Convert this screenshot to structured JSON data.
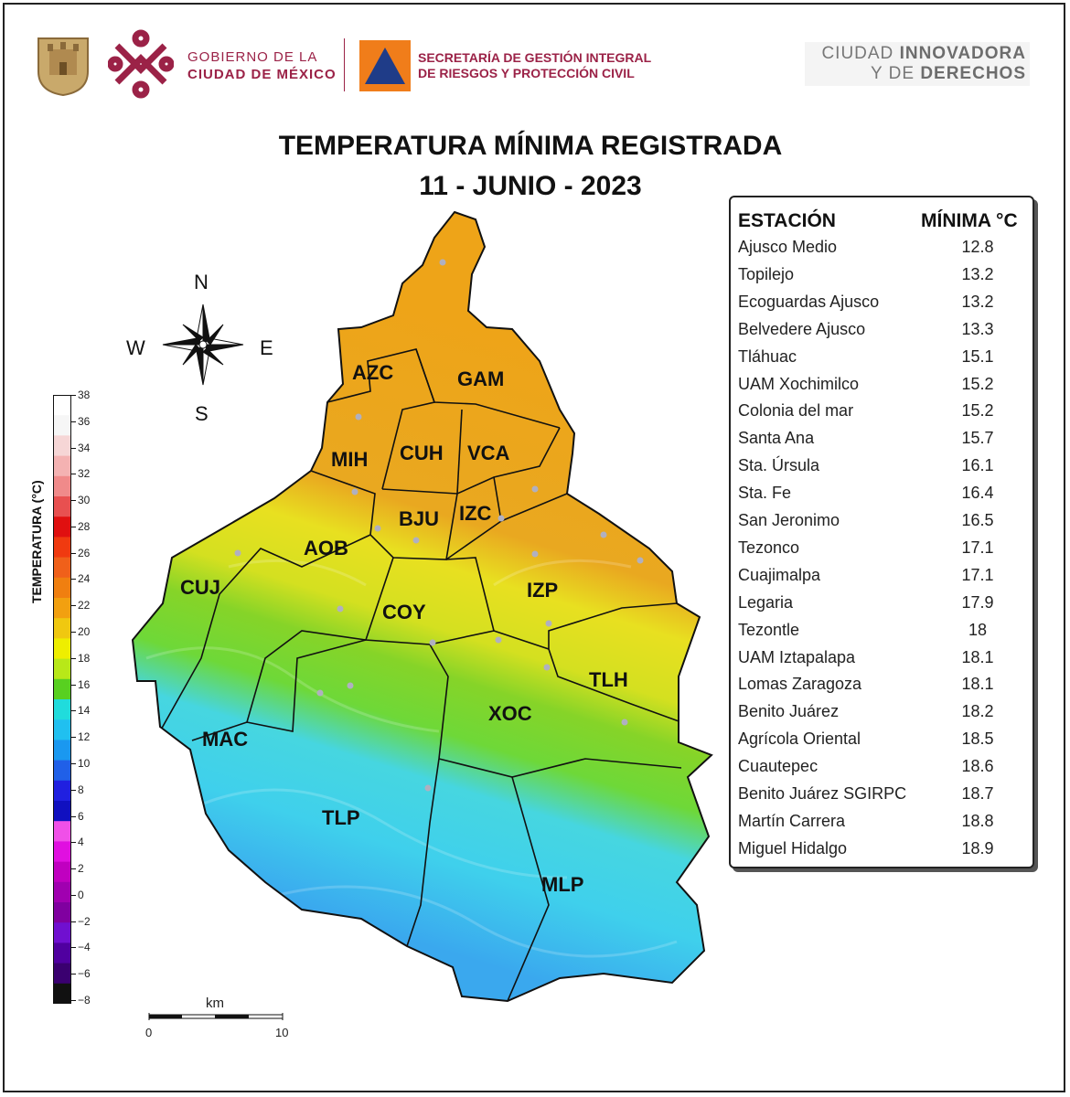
{
  "header": {
    "gobierno_line1": "GOBIERNO DE LA",
    "gobierno_line2": "CIUDAD DE MÉXICO",
    "secretaria_line1": "SECRETARÍA DE GESTIÓN INTEGRAL",
    "secretaria_line2": "DE RIESGOS Y PROTECCIÓN CIVIL",
    "slogan_line1_a": "CIUDAD ",
    "slogan_line1_b": "INNOVADORA",
    "slogan_line2_a": "Y DE ",
    "slogan_line2_b": "DERECHOS",
    "brand_color": "#9b2247"
  },
  "title_line1": "TEMPERATURA MÍNIMA REGISTRADA",
  "title_line2": "11 - JUNIO - 2023",
  "table": {
    "col_station": "ESTACIÓN",
    "col_min": "MÍNIMA °C",
    "rows": [
      {
        "name": "Ajusco Medio",
        "value": "12.8"
      },
      {
        "name": "Topilejo",
        "value": "13.2"
      },
      {
        "name": "Ecoguardas Ajusco",
        "value": "13.2"
      },
      {
        "name": "Belvedere Ajusco",
        "value": "13.3"
      },
      {
        "name": "Tláhuac",
        "value": "15.1"
      },
      {
        "name": "UAM Xochimilco",
        "value": "15.2"
      },
      {
        "name": "Colonia del mar",
        "value": "15.2"
      },
      {
        "name": "Santa Ana",
        "value": "15.7"
      },
      {
        "name": "Sta. Úrsula",
        "value": "16.1"
      },
      {
        "name": "Sta. Fe",
        "value": "16.4"
      },
      {
        "name": "San Jeronimo",
        "value": "16.5"
      },
      {
        "name": "Tezonco",
        "value": "17.1"
      },
      {
        "name": "Cuajimalpa",
        "value": "17.1"
      },
      {
        "name": "Legaria",
        "value": "17.9"
      },
      {
        "name": "Tezontle",
        "value": "18"
      },
      {
        "name": "UAM Iztapalapa",
        "value": "18.1"
      },
      {
        "name": "Lomas Zaragoza",
        "value": "18.1"
      },
      {
        "name": "Benito Juárez",
        "value": "18.2"
      },
      {
        "name": "Agrícola Oriental",
        "value": "18.5"
      },
      {
        "name": "Cuautepec",
        "value": "18.6"
      },
      {
        "name": "Benito Juárez SGIRPC",
        "value": "18.7"
      },
      {
        "name": "Martín Carrera",
        "value": "18.8"
      },
      {
        "name": "Miguel Hidalgo",
        "value": "18.9"
      }
    ]
  },
  "colorbar": {
    "title": "TEMPERATURA (°C)",
    "ticks": [
      "38",
      "36",
      "34",
      "32",
      "30",
      "28",
      "26",
      "24",
      "22",
      "20",
      "18",
      "16",
      "14",
      "12",
      "10",
      "8",
      "6",
      "4",
      "2",
      "0",
      "−2",
      "−4",
      "−6",
      "−8"
    ],
    "colors": [
      "#ffffff",
      "#f6f6f6",
      "#f6d6d6",
      "#f4b2b2",
      "#f08a8a",
      "#e85050",
      "#e01010",
      "#f03a10",
      "#f0601a",
      "#f07f10",
      "#f2a010",
      "#f0c810",
      "#eeee00",
      "#b8e818",
      "#58d020",
      "#20dcdc",
      "#20c0f0",
      "#1a98f0",
      "#2060e8",
      "#2020e0",
      "#1010c0",
      "#f050e8",
      "#e010e0",
      "#c000c0",
      "#a000b0",
      "#8000a0",
      "#7010d0",
      "#5000a0",
      "#3a0070",
      "#111111"
    ]
  },
  "compass": {
    "n": "N",
    "s": "S",
    "e": "E",
    "w": "W"
  },
  "districts": {
    "azc": "AZC",
    "gam": "GAM",
    "mih": "MIH",
    "cuh": "CUH",
    "vca": "VCA",
    "bju": "BJU",
    "izc": "IZC",
    "aob": "AOB",
    "cuj": "CUJ",
    "izp": "IZP",
    "coy": "COY",
    "tlh": "TLH",
    "mac": "MAC",
    "xoc": "XOC",
    "tlp": "TLP",
    "mlp": "MLP"
  },
  "scale": {
    "unit": "km",
    "start": "0",
    "end": "10"
  }
}
